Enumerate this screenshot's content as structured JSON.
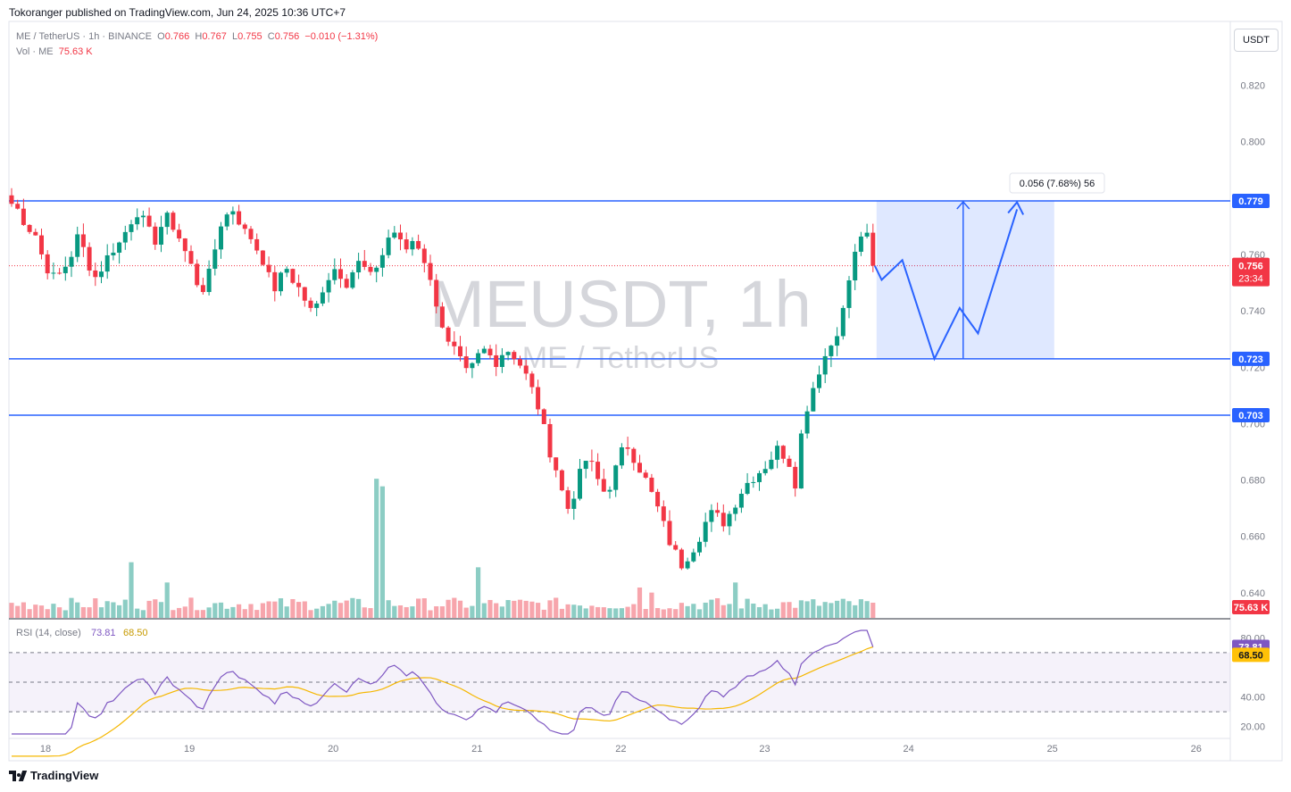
{
  "header": {
    "published_by": "Tokoranger published on TradingView.com, Jun 24, 2025 10:36 UTC+7"
  },
  "legend": {
    "symbol": "ME / TetherUS · 1h · BINANCE",
    "o_label": "O",
    "o": "0.766",
    "h_label": "H",
    "h": "0.767",
    "l_label": "L",
    "l": "0.755",
    "c_label": "C",
    "c": "0.756",
    "change": "−0.010 (−1.31%)",
    "vol_label": "Vol · ME",
    "vol": "75.63 K"
  },
  "currency_button": "USDT",
  "watermark": {
    "symbol": "MEUSDT, 1h",
    "name": "ME / TetherUS"
  },
  "footer": {
    "brand": "TradingView"
  },
  "colors": {
    "up": "#089981",
    "down": "#f23645",
    "up_vol": "#8ccdc4",
    "down_vol": "#f7a5ac",
    "level_line": "#2962ff",
    "rsi": "#7e57c2",
    "rsi_ma": "#f5b700"
  },
  "chart_data": {
    "type": "candlestick",
    "symbol": "MEUSDT",
    "timeframe": "1h",
    "x_tick_labels": [
      "18",
      "19",
      "20",
      "21",
      "22",
      "23",
      "24",
      "25",
      "26"
    ],
    "price_axis": {
      "ticks": [
        "0.820",
        "0.800",
        "0.760",
        "0.740",
        "0.720",
        "0.700",
        "0.680",
        "0.660",
        "0.640"
      ],
      "range": [
        0.633,
        0.836
      ]
    },
    "horizontal_levels": [
      {
        "price": 0.779,
        "label": "0.779"
      },
      {
        "price": 0.723,
        "label": "0.723"
      },
      {
        "price": 0.703,
        "label": "0.703"
      }
    ],
    "last_price": {
      "value": "0.756",
      "countdown": "23:34"
    },
    "volume_last_label": "75.63 K",
    "measure_label": "0.056 (7.68%) 56",
    "projection_path": [
      {
        "t": 0,
        "price": 0.756
      },
      {
        "t": 3,
        "price": 0.751
      },
      {
        "t": 12,
        "price": 0.758
      },
      {
        "t": 26,
        "price": 0.723
      },
      {
        "t": 37,
        "price": 0.741
      },
      {
        "t": 45,
        "price": 0.732
      },
      {
        "t": 62,
        "price": 0.776
      }
    ],
    "candle_segments": [
      [
        0.782,
        0.778,
        0.776,
        0.772,
        0.769,
        0.767,
        0.76,
        0.755,
        0.752,
        0.753
      ],
      [
        0.753,
        0.756,
        0.76,
        0.766,
        0.762,
        0.756,
        0.752,
        0.755,
        0.759,
        0.762
      ],
      [
        0.762,
        0.764,
        0.768,
        0.772,
        0.775,
        0.772,
        0.768,
        0.765,
        0.77,
        0.773
      ],
      [
        0.773,
        0.77,
        0.766,
        0.761,
        0.756,
        0.75,
        0.748,
        0.753,
        0.762,
        0.771
      ],
      [
        0.771,
        0.774,
        0.776,
        0.772,
        0.768,
        0.766,
        0.762,
        0.758,
        0.752,
        0.748
      ],
      [
        0.748,
        0.752,
        0.755,
        0.751,
        0.748,
        0.744,
        0.74,
        0.742,
        0.748,
        0.752
      ],
      [
        0.752,
        0.755,
        0.753,
        0.75,
        0.754,
        0.757,
        0.755,
        0.752,
        0.756,
        0.76
      ],
      [
        0.76,
        0.766,
        0.768,
        0.764,
        0.762,
        0.765,
        0.763,
        0.758,
        0.75,
        0.743
      ],
      [
        0.743,
        0.735,
        0.728,
        0.726,
        0.722,
        0.718,
        0.72,
        0.724,
        0.726,
        0.724
      ],
      [
        0.724,
        0.722,
        0.725,
        0.726,
        0.724,
        0.721,
        0.717,
        0.712,
        0.706,
        0.698
      ],
      [
        0.698,
        0.69,
        0.684,
        0.676,
        0.67,
        0.675,
        0.682,
        0.687,
        0.685,
        0.68
      ],
      [
        0.68,
        0.676,
        0.678,
        0.684,
        0.69,
        0.692,
        0.688,
        0.684,
        0.68,
        0.675
      ],
      [
        0.675,
        0.67,
        0.664,
        0.658,
        0.654,
        0.65,
        0.653,
        0.656,
        0.66,
        0.665
      ],
      [
        0.665,
        0.668,
        0.667,
        0.665,
        0.668,
        0.672,
        0.676,
        0.679,
        0.681,
        0.683
      ],
      [
        0.683,
        0.685,
        0.688,
        0.691,
        0.689,
        0.686,
        0.679,
        0.696,
        0.706,
        0.713
      ],
      [
        0.713,
        0.719,
        0.724,
        0.728,
        0.733,
        0.74,
        0.751,
        0.76,
        0.767,
        0.766,
        0.756
      ]
    ],
    "volume_range": [
      0,
      60
    ],
    "rsi": {
      "label": "RSI (14, close)",
      "value": "73.81",
      "ma_value": "68.50",
      "levels": [
        70,
        50,
        30
      ],
      "ticks": [
        "80.00",
        "40.00",
        "20.00"
      ],
      "range": [
        15,
        85
      ]
    }
  }
}
